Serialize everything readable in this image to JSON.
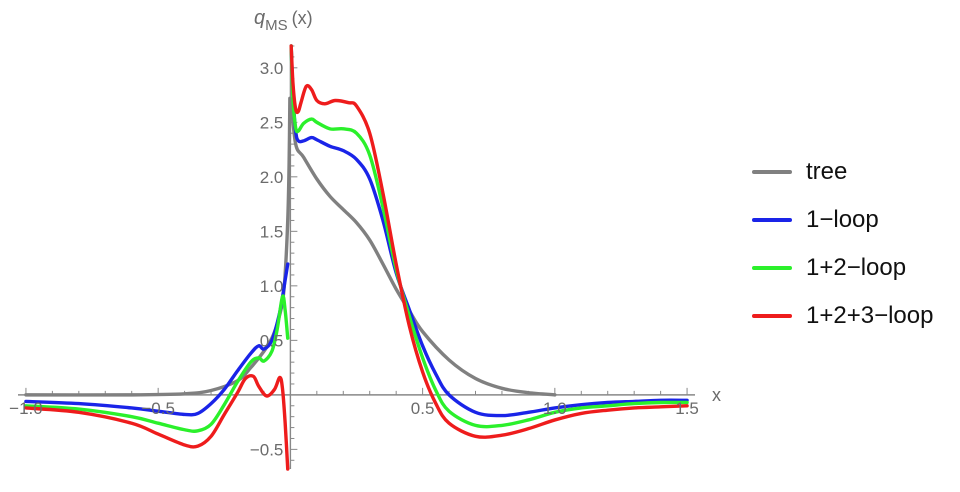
{
  "chart_data": {
    "type": "line",
    "ylabel_main": "q",
    "ylabel_sub": "MS",
    "ylabel_arg": "(x)",
    "xlabel": "x",
    "xlim": [
      -1.03,
      1.53
    ],
    "ylim": [
      -0.68,
      3.2
    ],
    "x_ticks": [
      {
        "value": -1.0,
        "label": "−1.0"
      },
      {
        "value": -0.5,
        "label": "−0.5"
      },
      {
        "value": 0.5,
        "label": "0.5"
      },
      {
        "value": 1.0,
        "label": "1.0"
      },
      {
        "value": 1.5,
        "label": "1.5"
      }
    ],
    "y_ticks": [
      {
        "value": -0.5,
        "label": "−0.5"
      },
      {
        "value": 0.5,
        "label": "0.5"
      },
      {
        "value": 1.0,
        "label": "1.0"
      },
      {
        "value": 1.5,
        "label": "1.5"
      },
      {
        "value": 2.0,
        "label": "2.0"
      },
      {
        "value": 2.5,
        "label": "2.5"
      },
      {
        "value": 3.0,
        "label": "3.0"
      }
    ],
    "grid": false,
    "legend_position": "right",
    "series": [
      {
        "name": "tree",
        "color": "#808080",
        "segments": [
          [
            [
              -1.0,
              0.0
            ],
            [
              -0.6,
              0.0
            ],
            [
              -0.4,
              0.01
            ],
            [
              -0.3,
              0.04
            ],
            [
              -0.2,
              0.13
            ],
            [
              -0.15,
              0.25
            ],
            [
              -0.1,
              0.4
            ],
            [
              -0.07,
              0.52
            ],
            [
              -0.05,
              0.65
            ],
            [
              -0.03,
              0.85
            ],
            [
              -0.02,
              1.1
            ],
            [
              -0.01,
              1.6
            ],
            [
              -0.005,
              2.1
            ],
            [
              -0.002,
              2.72
            ]
          ],
          [
            [
              0.003,
              2.7
            ],
            [
              0.02,
              2.3
            ],
            [
              0.05,
              2.18
            ],
            [
              0.1,
              1.98
            ],
            [
              0.15,
              1.82
            ],
            [
              0.2,
              1.7
            ],
            [
              0.25,
              1.58
            ],
            [
              0.3,
              1.42
            ],
            [
              0.35,
              1.2
            ],
            [
              0.4,
              0.97
            ],
            [
              0.45,
              0.77
            ],
            [
              0.5,
              0.58
            ],
            [
              0.6,
              0.32
            ],
            [
              0.7,
              0.15
            ],
            [
              0.8,
              0.06
            ],
            [
              0.9,
              0.02
            ],
            [
              1.0,
              0.0
            ]
          ]
        ]
      },
      {
        "name": "1−loop",
        "color": "#1a24e8",
        "segments": [
          [
            [
              -1.0,
              -0.06
            ],
            [
              -0.8,
              -0.08
            ],
            [
              -0.6,
              -0.12
            ],
            [
              -0.5,
              -0.15
            ],
            [
              -0.4,
              -0.18
            ],
            [
              -0.35,
              -0.17
            ],
            [
              -0.3,
              -0.08
            ],
            [
              -0.25,
              0.05
            ],
            [
              -0.2,
              0.22
            ],
            [
              -0.15,
              0.38
            ],
            [
              -0.12,
              0.45
            ],
            [
              -0.1,
              0.42
            ],
            [
              -0.07,
              0.5
            ],
            [
              -0.04,
              0.76
            ],
            [
              -0.02,
              1.05
            ],
            [
              -0.01,
              1.2
            ]
          ],
          [
            [
              0.003,
              3.2
            ],
            [
              0.01,
              2.75
            ],
            [
              0.02,
              2.42
            ],
            [
              0.03,
              2.33
            ],
            [
              0.05,
              2.33
            ],
            [
              0.08,
              2.36
            ],
            [
              0.1,
              2.34
            ],
            [
              0.15,
              2.28
            ],
            [
              0.2,
              2.24
            ],
            [
              0.25,
              2.16
            ],
            [
              0.3,
              1.98
            ],
            [
              0.35,
              1.6
            ],
            [
              0.4,
              1.12
            ],
            [
              0.45,
              0.78
            ],
            [
              0.5,
              0.45
            ],
            [
              0.55,
              0.19
            ],
            [
              0.6,
              0.0
            ],
            [
              0.7,
              -0.16
            ],
            [
              0.8,
              -0.19
            ],
            [
              0.9,
              -0.16
            ],
            [
              1.0,
              -0.12
            ],
            [
              1.1,
              -0.09
            ],
            [
              1.2,
              -0.07
            ],
            [
              1.3,
              -0.06
            ],
            [
              1.4,
              -0.05
            ],
            [
              1.5,
              -0.05
            ]
          ]
        ]
      },
      {
        "name": "1+2−loop",
        "color": "#2bf02b",
        "segments": [
          [
            [
              -1.0,
              -0.1
            ],
            [
              -0.8,
              -0.13
            ],
            [
              -0.6,
              -0.2
            ],
            [
              -0.5,
              -0.26
            ],
            [
              -0.4,
              -0.32
            ],
            [
              -0.35,
              -0.33
            ],
            [
              -0.3,
              -0.27
            ],
            [
              -0.25,
              -0.09
            ],
            [
              -0.2,
              0.12
            ],
            [
              -0.15,
              0.3
            ],
            [
              -0.12,
              0.34
            ],
            [
              -0.1,
              0.31
            ],
            [
              -0.07,
              0.4
            ],
            [
              -0.05,
              0.6
            ],
            [
              -0.03,
              0.9
            ],
            [
              -0.02,
              0.78
            ],
            [
              -0.01,
              0.52
            ]
          ],
          [
            [
              0.003,
              3.2
            ],
            [
              0.01,
              2.7
            ],
            [
              0.02,
              2.45
            ],
            [
              0.03,
              2.42
            ],
            [
              0.05,
              2.49
            ],
            [
              0.08,
              2.53
            ],
            [
              0.1,
              2.5
            ],
            [
              0.15,
              2.44
            ],
            [
              0.2,
              2.44
            ],
            [
              0.25,
              2.4
            ],
            [
              0.3,
              2.2
            ],
            [
              0.35,
              1.72
            ],
            [
              0.4,
              1.15
            ],
            [
              0.45,
              0.72
            ],
            [
              0.5,
              0.34
            ],
            [
              0.55,
              0.04
            ],
            [
              0.6,
              -0.15
            ],
            [
              0.7,
              -0.28
            ],
            [
              0.8,
              -0.28
            ],
            [
              0.9,
              -0.23
            ],
            [
              1.0,
              -0.16
            ],
            [
              1.1,
              -0.12
            ],
            [
              1.2,
              -0.1
            ],
            [
              1.3,
              -0.08
            ],
            [
              1.4,
              -0.07
            ],
            [
              1.5,
              -0.07
            ]
          ]
        ]
      },
      {
        "name": "1+2+3−loop",
        "color": "#ee1c1c",
        "segments": [
          [
            [
              -1.0,
              -0.12
            ],
            [
              -0.8,
              -0.16
            ],
            [
              -0.6,
              -0.26
            ],
            [
              -0.5,
              -0.36
            ],
            [
              -0.4,
              -0.46
            ],
            [
              -0.35,
              -0.47
            ],
            [
              -0.3,
              -0.38
            ],
            [
              -0.25,
              -0.18
            ],
            [
              -0.2,
              0.02
            ],
            [
              -0.17,
              0.15
            ],
            [
              -0.14,
              0.17
            ],
            [
              -0.12,
              0.08
            ],
            [
              -0.09,
              -0.01
            ],
            [
              -0.06,
              0.05
            ],
            [
              -0.04,
              0.16
            ],
            [
              -0.03,
              0.06
            ],
            [
              -0.02,
              -0.25
            ],
            [
              -0.01,
              -0.68
            ]
          ],
          [
            [
              0.003,
              3.2
            ],
            [
              0.01,
              2.85
            ],
            [
              0.02,
              2.62
            ],
            [
              0.03,
              2.6
            ],
            [
              0.04,
              2.68
            ],
            [
              0.06,
              2.83
            ],
            [
              0.08,
              2.8
            ],
            [
              0.1,
              2.7
            ],
            [
              0.13,
              2.67
            ],
            [
              0.17,
              2.7
            ],
            [
              0.22,
              2.68
            ],
            [
              0.25,
              2.65
            ],
            [
              0.3,
              2.4
            ],
            [
              0.35,
              1.85
            ],
            [
              0.4,
              1.2
            ],
            [
              0.45,
              0.63
            ],
            [
              0.5,
              0.21
            ],
            [
              0.55,
              -0.08
            ],
            [
              0.6,
              -0.26
            ],
            [
              0.7,
              -0.38
            ],
            [
              0.8,
              -0.37
            ],
            [
              0.9,
              -0.31
            ],
            [
              1.0,
              -0.23
            ],
            [
              1.1,
              -0.17
            ],
            [
              1.2,
              -0.14
            ],
            [
              1.3,
              -0.12
            ],
            [
              1.4,
              -0.11
            ],
            [
              1.5,
              -0.1
            ]
          ]
        ]
      }
    ]
  }
}
